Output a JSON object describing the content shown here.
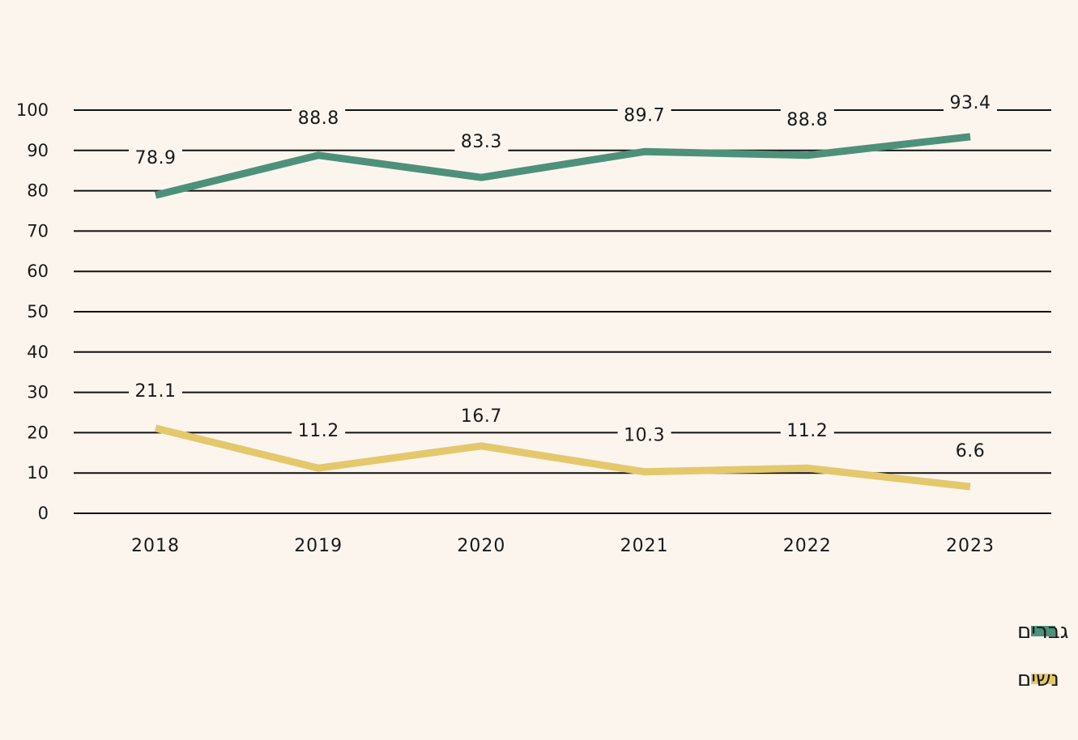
{
  "chart_data": {
    "type": "line",
    "categories": [
      "2018",
      "2019",
      "2020",
      "2021",
      "2022",
      "2023"
    ],
    "series": [
      {
        "name": "גברים",
        "color": "#4e917a",
        "values": [
          78.9,
          88.8,
          83.3,
          89.7,
          88.8,
          93.4
        ],
        "labels": [
          "78.9",
          "88.8",
          "83.3",
          "89.7",
          "88.8",
          "93.4"
        ]
      },
      {
        "name": "נשים",
        "color": "#e4c86c",
        "values": [
          21.1,
          11.2,
          16.7,
          10.3,
          11.2,
          6.6
        ],
        "labels": [
          "21.1",
          "11.2",
          "16.7",
          "10.3",
          "11.2",
          "6.6"
        ]
      }
    ],
    "y_ticks": [
      "0",
      "10",
      "20",
      "30",
      "40",
      "50",
      "60",
      "70",
      "80",
      "90",
      "100"
    ],
    "ylim": [
      0,
      100
    ],
    "grid": true,
    "legend_position": "bottom-right"
  }
}
